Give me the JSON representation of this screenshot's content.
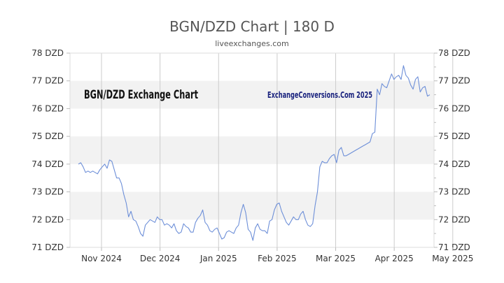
{
  "chart_data": {
    "type": "line",
    "title": "BGN/DZD Chart | 180 D",
    "subtitle": "liveexchanges.com",
    "inner_title": "BGN/DZD Exchange Chart",
    "watermark": "ExchangeConversions.Com 2025",
    "xlabel": "",
    "ylabel": "",
    "ylim": [
      71,
      78
    ],
    "y_ticks": [
      "71 DZD",
      "72 DZD",
      "73 DZD",
      "74 DZD",
      "75 DZD",
      "76 DZD",
      "77 DZD",
      "78 DZD"
    ],
    "x_tick_labels": [
      "Nov 2024",
      "Dec 2024",
      "Jan 2025",
      "Feb 2025",
      "Mar 2025",
      "Apr 2025",
      "May 2025"
    ],
    "grid": true,
    "banding": true,
    "line_color": "#6d8fd8",
    "watermark_color": "#1a237e",
    "series": [
      {
        "values": [
          74.0,
          74.05,
          73.9,
          73.7,
          73.75,
          73.7,
          73.75,
          73.7,
          73.65,
          73.8,
          73.9,
          74.0,
          73.85,
          74.15,
          74.1,
          73.8,
          73.5,
          73.5,
          73.3,
          72.9,
          72.6,
          72.1,
          72.3,
          72.0,
          71.95,
          71.75,
          71.5,
          71.4,
          71.8,
          71.9,
          72.0,
          71.95,
          71.9,
          72.1,
          72.0,
          72.0,
          71.8,
          71.85,
          71.8,
          71.7,
          71.85,
          71.6,
          71.5,
          71.55,
          71.85,
          71.75,
          71.7,
          71.55,
          71.55,
          71.9,
          72.05,
          72.15,
          72.35,
          71.9,
          71.8,
          71.6,
          71.55,
          71.65,
          71.7,
          71.5,
          71.3,
          71.35,
          71.55,
          71.6,
          71.55,
          71.5,
          71.7,
          71.8,
          72.25,
          72.55,
          72.25,
          71.65,
          71.55,
          71.25,
          71.7,
          71.85,
          71.65,
          71.6,
          71.6,
          71.5,
          71.95,
          72.0,
          72.35,
          72.55,
          72.6,
          72.3,
          72.1,
          71.9,
          71.8,
          71.95,
          72.1,
          72.0,
          72.0,
          72.2,
          72.3,
          72.0,
          71.8,
          71.75,
          71.85,
          72.5,
          73.0,
          73.9,
          74.1,
          74.05,
          74.05,
          74.2,
          74.3,
          74.35,
          74.05,
          74.5,
          74.6,
          74.3,
          74.3,
          74.35,
          74.4,
          74.45,
          74.5,
          74.55,
          74.6,
          74.65,
          74.7,
          74.75,
          74.8,
          75.1,
          75.15,
          76.7,
          76.5,
          76.9,
          76.8,
          76.75,
          77.0,
          77.25,
          77.05,
          77.15,
          77.2,
          77.05,
          77.55,
          77.2,
          77.1,
          76.85,
          76.7,
          77.05,
          77.15,
          76.6,
          76.75,
          76.8,
          76.45,
          76.5
        ]
      }
    ]
  }
}
